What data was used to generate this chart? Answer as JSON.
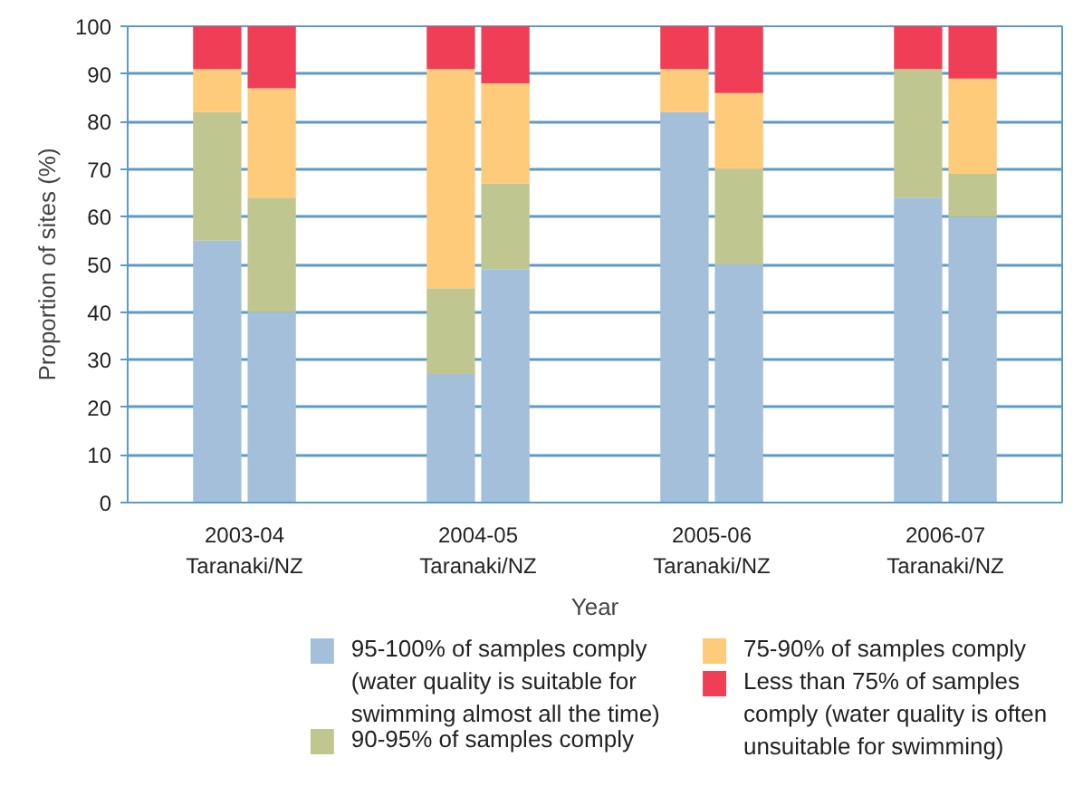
{
  "chart_data": {
    "type": "bar",
    "stacked": true,
    "xlabel": "Year",
    "ylabel": "Proportion of sites (%)",
    "categories": [
      null,
      null,
      null,
      null,
      null,
      null,
      null,
      null
    ],
    "annotations": [
      "2003-04\nTaranaki/NZ",
      "2004-05\nTaranaki/NZ",
      "2005-06\nTaranaki/NZ",
      "2006-07\nTaranaki/NZ"
    ],
    "series": [
      {
        "name": "95-100% of samples comply\n(water quality is suitable for\nswimming almost all the time)",
        "color": "#a3bfd9",
        "values": [
          55,
          40,
          27,
          49,
          82,
          50,
          64,
          60
        ]
      },
      {
        "name": "90-95% of samples comply",
        "color": "#c0c690",
        "values": [
          27,
          24,
          18,
          18,
          0,
          20,
          27,
          9
        ]
      },
      {
        "name": "75-90% of samples comply",
        "color": "#fdcb7a",
        "values": [
          9,
          23,
          46,
          21,
          9,
          16,
          0,
          20
        ]
      },
      {
        "name": "Less than 75% of samples\ncomply (water quality is often\nunsuitable for swimming)",
        "color": "#ef3e56",
        "values": [
          9,
          13,
          9,
          12,
          9,
          14,
          9,
          11
        ]
      }
    ],
    "ylim": [
      0,
      100
    ],
    "yticks": [
      0,
      10,
      20,
      30,
      40,
      50,
      60,
      70,
      80,
      90,
      100
    ],
    "grid": "y",
    "legend": "bottom"
  }
}
